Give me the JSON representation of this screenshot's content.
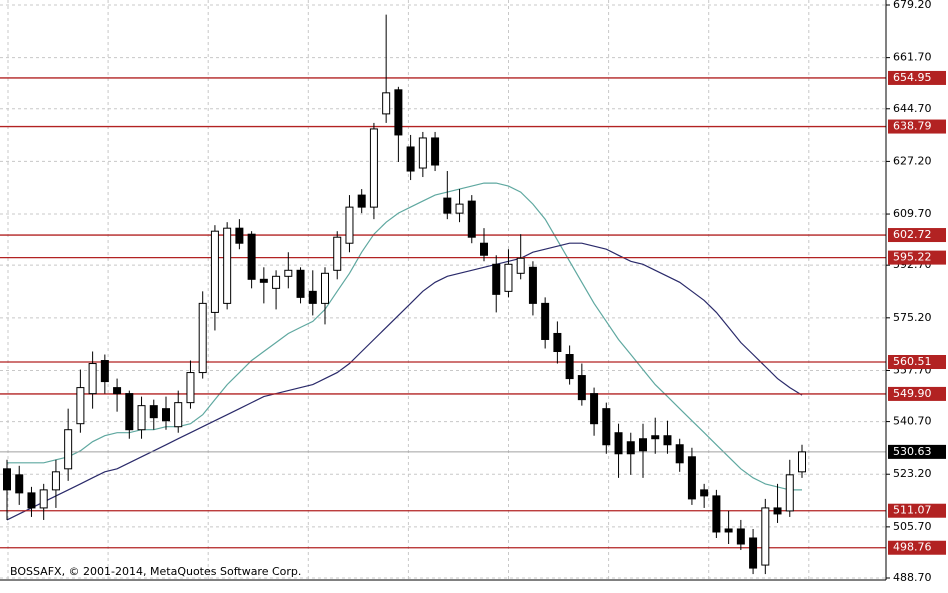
{
  "chart_data": {
    "type": "candlestick",
    "footer": "BOSSAFX, © 2001-2014, MetaQuotes Software Corp.",
    "ylim": [
      488.7,
      679.2
    ],
    "yticks": [
      {
        "value": 679.2,
        "label": "679.20"
      },
      {
        "value": 661.7,
        "label": "661.70"
      },
      {
        "value": 644.7,
        "label": "644.70"
      },
      {
        "value": 627.2,
        "label": "627.20"
      },
      {
        "value": 609.7,
        "label": "609.70"
      },
      {
        "value": 592.7,
        "label": "592.70"
      },
      {
        "value": 575.2,
        "label": "575.20"
      },
      {
        "value": 557.7,
        "label": "557.70"
      },
      {
        "value": 540.7,
        "label": "540.70"
      },
      {
        "value": 523.2,
        "label": "523.20"
      },
      {
        "value": 505.7,
        "label": "505.70"
      },
      {
        "value": 488.7,
        "label": "488.70"
      }
    ],
    "grid": true,
    "candle_color": "#000000",
    "bull_fill": "#ffffff",
    "open": [
      525,
      523,
      517,
      512,
      518,
      525,
      540,
      550,
      561,
      552,
      550,
      538,
      546,
      545,
      539,
      547,
      557,
      577,
      580,
      605,
      603,
      588,
      585,
      589,
      591,
      584,
      580,
      591,
      600,
      616,
      612,
      643,
      651,
      632,
      625,
      635,
      615,
      610,
      614,
      600,
      593,
      584,
      590,
      592,
      580,
      570,
      563,
      556,
      550,
      545,
      537,
      534,
      535,
      536,
      536,
      533,
      529,
      518,
      516,
      505,
      505,
      502,
      493,
      512,
      511,
      524
    ],
    "high": [
      528,
      526,
      519,
      520,
      528,
      545,
      558,
      564,
      563,
      555,
      551,
      549,
      548,
      549,
      551,
      561,
      584,
      606,
      607,
      608,
      604,
      592,
      591,
      597,
      592,
      591,
      592,
      604,
      616,
      618,
      640,
      676,
      652,
      636,
      637,
      637,
      624,
      618,
      616,
      605,
      596,
      598,
      603,
      594,
      582,
      574,
      566,
      560,
      552,
      547,
      540,
      537,
      540,
      542,
      541,
      535,
      532,
      520,
      518,
      511,
      508,
      505,
      515,
      520,
      528,
      533
    ],
    "low": [
      508,
      513,
      509,
      508,
      512,
      521,
      537,
      545,
      550,
      544,
      535,
      535,
      538,
      538,
      537,
      545,
      555,
      571,
      578,
      598,
      585,
      580,
      578,
      585,
      580,
      576,
      573,
      588,
      597,
      610,
      608,
      640,
      627,
      621,
      622,
      624,
      608,
      607,
      600,
      594,
      577,
      582,
      588,
      576,
      565,
      560,
      553,
      546,
      536,
      530,
      522,
      523,
      522,
      530,
      530,
      524,
      513,
      512,
      502,
      500,
      498,
      490,
      490,
      507,
      509,
      522
    ],
    "close": [
      518,
      517,
      512,
      518,
      524,
      538,
      552,
      560,
      554,
      550,
      538,
      546,
      542,
      541,
      547,
      557,
      580,
      604,
      605,
      600,
      588,
      587,
      589,
      591,
      582,
      580,
      590,
      602,
      612,
      612,
      638,
      650,
      636,
      624,
      635,
      626,
      610,
      613,
      602,
      596,
      583,
      593,
      595,
      580,
      568,
      564,
      555,
      548,
      540,
      533,
      530,
      530,
      531,
      535,
      533,
      527,
      515,
      516,
      504,
      504,
      500,
      492,
      512,
      510,
      523,
      530.63
    ],
    "series": [
      {
        "color": "#5fa8a0",
        "values": [
          527,
          527,
          527,
          527,
          528,
          529,
          531,
          534,
          536,
          537,
          537,
          538,
          538,
          539,
          539,
          540,
          543,
          548,
          553,
          557,
          561,
          564,
          567,
          570,
          572,
          574,
          578,
          584,
          590,
          597,
          603,
          607,
          610,
          612,
          614,
          616,
          617,
          618,
          619,
          620,
          620,
          619,
          617,
          613,
          608,
          601,
          594,
          587,
          580,
          574,
          568,
          563,
          558,
          553,
          549,
          545,
          541,
          537,
          533,
          529,
          525,
          522,
          520,
          519,
          518,
          518
        ]
      },
      {
        "color": "#2a2a6a",
        "values": [
          508,
          510,
          512,
          514,
          516,
          518,
          520,
          522,
          524,
          525,
          527,
          529,
          531,
          533,
          535,
          537,
          539,
          541,
          543,
          545,
          547,
          549,
          550,
          551,
          552,
          553,
          555,
          557,
          560,
          564,
          568,
          572,
          576,
          580,
          584,
          587,
          589,
          590,
          591,
          592,
          593,
          594,
          595,
          597,
          598,
          599,
          600,
          600,
          599,
          598,
          596,
          594,
          593,
          591,
          589,
          587,
          584,
          581,
          577,
          572,
          567,
          563,
          559,
          555,
          552,
          549.5
        ]
      }
    ],
    "levels": {
      "color": "#b22222",
      "values": [
        654.95,
        638.79,
        602.72,
        595.22,
        560.51,
        549.9,
        511.07,
        498.76
      ],
      "value_labels": [
        "654.95",
        "638.79",
        "602.72",
        "595.22",
        "560.51",
        "549.90",
        "511.07",
        "498.76"
      ]
    },
    "last_price": 530.63
  }
}
